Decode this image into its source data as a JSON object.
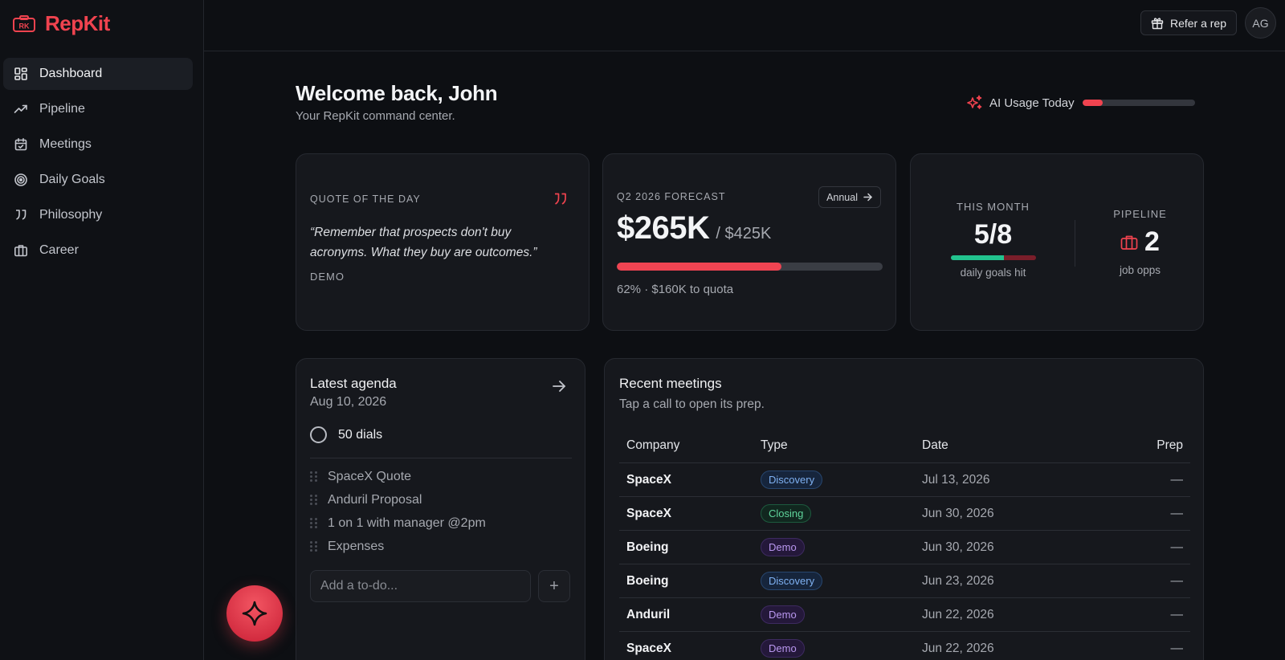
{
  "app": {
    "name": "RepKit",
    "logo_text": "RK",
    "accent": "#f0434f"
  },
  "sidebar": {
    "items": [
      {
        "label": "Dashboard",
        "icon": "dashboard-icon",
        "active": true
      },
      {
        "label": "Pipeline",
        "icon": "trending-up-icon"
      },
      {
        "label": "Meetings",
        "icon": "calendar-icon"
      },
      {
        "label": "Daily Goals",
        "icon": "target-icon"
      },
      {
        "label": "Philosophy",
        "icon": "quote-icon"
      },
      {
        "label": "Career",
        "icon": "briefcase-icon"
      }
    ]
  },
  "topbar": {
    "refer_label": "Refer a rep",
    "avatar_initials": "AG"
  },
  "header": {
    "title": "Welcome back, John",
    "subtitle": "Your RepKit command center.",
    "ai_usage_label": "AI Usage Today",
    "ai_usage_fraction": 0.18
  },
  "quote": {
    "label": "QUOTE OF THE DAY",
    "text": "“Remember that prospects don't buy acronyms. What they buy are outcomes.”",
    "author": "DEMO"
  },
  "forecast": {
    "label": "Q2 2026 FORECAST",
    "annual_label": "Annual",
    "value": "$265K",
    "total": "/ $425K",
    "progress_fraction": 0.62,
    "sub": "62% · $160K to quota"
  },
  "stats": {
    "month_label": "THIS MONTH",
    "month_value": "5/8",
    "goals_fraction": 0.625,
    "month_sub": "daily goals hit",
    "pipeline_label": "PIPELINE",
    "pipeline_value": "2",
    "pipeline_sub": "job opps"
  },
  "agenda": {
    "title": "Latest agenda",
    "date": "Aug 10, 2026",
    "primary_task": "50 dials",
    "items": [
      "SpaceX Quote",
      "Anduril Proposal",
      "1 on 1 with manager @2pm",
      "Expenses"
    ],
    "input_placeholder": "Add a to-do...",
    "add_symbol": "+"
  },
  "meetings": {
    "title": "Recent meetings",
    "subtitle": "Tap a call to open its prep.",
    "columns": [
      "Company",
      "Type",
      "Date",
      "Prep"
    ],
    "rows": [
      {
        "company": "SpaceX",
        "type": "Discovery",
        "date": "Jul 13, 2026",
        "prep": "—"
      },
      {
        "company": "SpaceX",
        "type": "Closing",
        "date": "Jun 30, 2026",
        "prep": "—"
      },
      {
        "company": "Boeing",
        "type": "Demo",
        "date": "Jun 30, 2026",
        "prep": "—"
      },
      {
        "company": "Boeing",
        "type": "Discovery",
        "date": "Jun 23, 2026",
        "prep": "—"
      },
      {
        "company": "Anduril",
        "type": "Demo",
        "date": "Jun 22, 2026",
        "prep": "—"
      },
      {
        "company": "SpaceX",
        "type": "Demo",
        "date": "Jun 22, 2026",
        "prep": "—"
      }
    ],
    "badge_colors": {
      "Discovery": "#7fb1f2",
      "Closing": "#5fd49b",
      "Demo": "#b997ef"
    }
  }
}
